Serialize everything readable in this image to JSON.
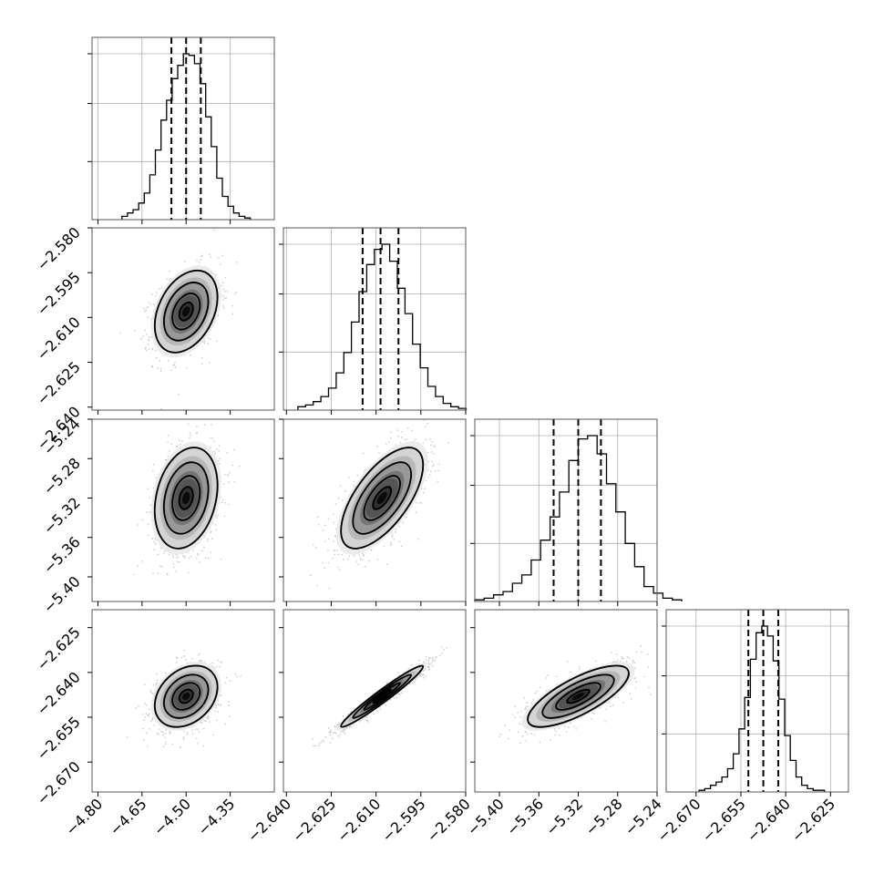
{
  "chart_data": {
    "type": "corner",
    "parameters": [
      {
        "mean": -4.5,
        "sigma": 0.052,
        "range": [
          -4.82,
          -4.2
        ],
        "ticks": [
          "-4.80",
          "-4.65",
          "-4.50",
          "-4.35"
        ],
        "quantiles": [
          -4.55,
          -4.5,
          -4.45
        ],
        "hist": [
          2,
          4,
          6,
          10,
          16,
          27,
          42,
          60,
          72,
          85,
          93,
          100,
          99,
          94,
          82,
          62,
          44,
          25,
          14,
          8,
          4,
          2,
          1
        ]
      },
      {
        "mean": -2.608,
        "sigma": 0.0067,
        "range": [
          -2.641,
          -2.58
        ],
        "ticks": [
          "-2.640",
          "-2.625",
          "-2.610",
          "-2.595",
          "-2.580"
        ],
        "quantiles": [
          -2.6145,
          -2.6085,
          -2.6025
        ],
        "hist": [
          2,
          3,
          5,
          8,
          13,
          22,
          34,
          52,
          70,
          86,
          95,
          98,
          88,
          72,
          57,
          39,
          25,
          14,
          8,
          4,
          2,
          1
        ]
      },
      {
        "mean": -5.32,
        "sigma": 0.025,
        "range": [
          -5.425,
          -5.24
        ],
        "ticks": [
          "-5.40",
          "-5.36",
          "-5.32",
          "-5.28",
          "-5.24"
        ],
        "quantiles": [
          -5.345,
          -5.32,
          -5.297
        ],
        "hist": [
          1,
          2,
          4,
          6,
          11,
          16,
          25,
          37,
          51,
          66,
          85,
          98,
          100,
          89,
          71,
          54,
          35,
          21,
          9,
          5,
          2,
          1
        ]
      },
      {
        "mean": -2.648,
        "sigma": 0.005,
        "range": [
          -2.68,
          -2.619
        ],
        "ticks": [
          "-2.670",
          "-2.655",
          "-2.640",
          "-2.625"
        ],
        "quantiles": [
          -2.6525,
          -2.6475,
          -2.6425
        ],
        "hist": [
          1,
          2,
          4,
          6,
          9,
          14,
          23,
          38,
          57,
          80,
          96,
          100,
          94,
          79,
          56,
          34,
          19,
          9,
          4,
          2,
          1,
          1
        ]
      }
    ],
    "correlations": [
      [
        0,
        1,
        0.35
      ],
      [
        0,
        2,
        0.25
      ],
      [
        1,
        2,
        0.65
      ],
      [
        0,
        3,
        0.3
      ],
      [
        1,
        3,
        0.97
      ],
      [
        2,
        3,
        0.75
      ]
    ],
    "grid": true
  }
}
